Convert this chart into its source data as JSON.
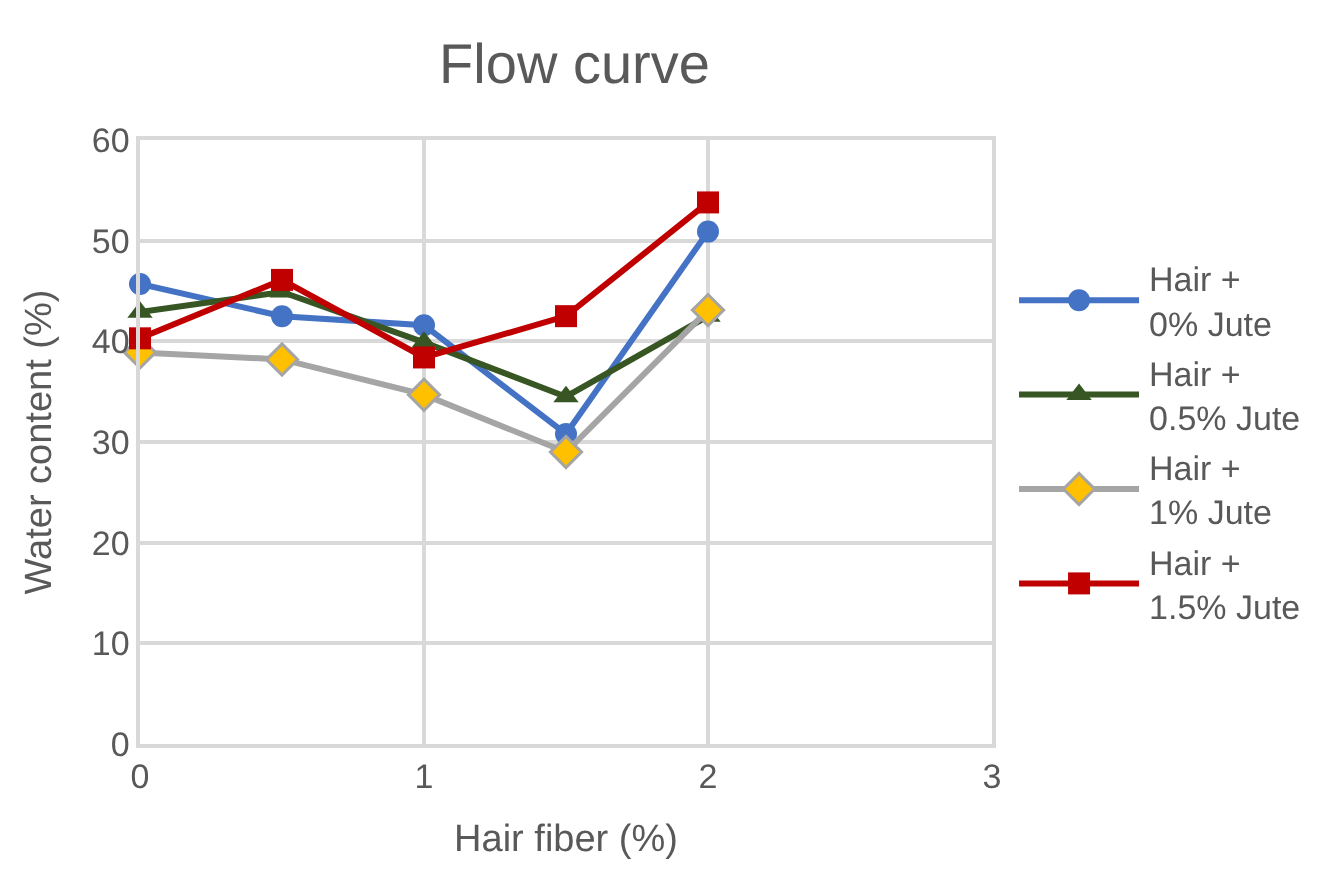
{
  "chart_data": {
    "type": "line",
    "title": "Flow curve",
    "xlabel": "Hair fiber (%)",
    "ylabel": "Water content (%)",
    "x": [
      0,
      0.5,
      1,
      1.5,
      2
    ],
    "series": [
      {
        "name": "Hair + 0% Jute",
        "color": "#4472c4",
        "marker": "circle",
        "values": [
          45.7,
          42.5,
          41.6,
          30.8,
          50.9
        ]
      },
      {
        "name": "Hair + 0.5% Jute",
        "color": "#375623",
        "marker": "triangle",
        "values": [
          42.9,
          44.9,
          39.9,
          34.5,
          42.5
        ]
      },
      {
        "name": "Hair + 1% Jute",
        "color": "#a5a5a5",
        "colors": [
          "#ffc000",
          "#ffc000",
          "#ffc000",
          "#ffc000",
          "#ffc000"
        ],
        "marker": "diamond",
        "values": [
          38.9,
          38.2,
          34.7,
          29.0,
          43.1
        ]
      },
      {
        "name": "Hair + 1.5% Jute",
        "color": "#c00000",
        "marker": "square",
        "values": [
          40.3,
          46.1,
          38.4,
          42.5,
          53.8
        ]
      }
    ],
    "xlim": [
      0,
      3
    ],
    "xticks": [
      0,
      1,
      2,
      3
    ],
    "ylim": [
      0,
      60
    ],
    "yticks": [
      0,
      10,
      20,
      30,
      40,
      50,
      60
    ],
    "grid": true,
    "legend": "right",
    "line_style": "solid"
  }
}
